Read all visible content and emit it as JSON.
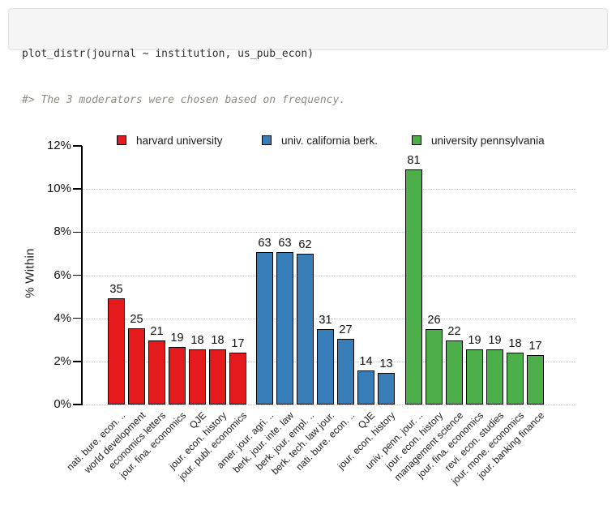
{
  "code_block": {
    "line1": "plot_distr(journal ~ institution, us_pub_econ)",
    "line2": "#> The 3 moderators were chosen based on frequency."
  },
  "chart_data": {
    "type": "bar",
    "title": "",
    "ylabel": "% Within",
    "ylim": [
      0,
      12
    ],
    "ytick_labels": [
      "0%",
      "2%",
      "4%",
      "6%",
      "8%",
      "10%",
      "12%"
    ],
    "grid": "horizontal-dotted",
    "legend_position": "top",
    "series": [
      {
        "name": "harvard university",
        "color": "#e41a1c",
        "categories": [
          "nati. bure. econ. ..",
          "world development",
          "economics letters",
          "jour. fina. economics",
          "QJE",
          "jour. econ. history",
          "jour. publ. economics"
        ],
        "counts": [
          35,
          25,
          21,
          19,
          18,
          18,
          17
        ],
        "pct_within": [
          4.94,
          3.53,
          2.96,
          2.68,
          2.54,
          2.54,
          2.4
        ]
      },
      {
        "name": "univ. california berk.",
        "color": "#377eb8",
        "categories": [
          "amer. jour. agri. ..",
          "berk. jour. inte. law",
          "berk. jour. empl. ..",
          "berk. tech. law jour.",
          "nati. bure. econ. ..",
          "QJE",
          "jour. econ. history"
        ],
        "counts": [
          63,
          63,
          62,
          31,
          27,
          14,
          13
        ],
        "pct_within": [
          7.09,
          7.09,
          6.98,
          3.49,
          3.04,
          1.58,
          1.46
        ]
      },
      {
        "name": "university pennsylvania",
        "color": "#4daf4a",
        "categories": [
          "univ. penn. jour. ..",
          "jour. econ. history",
          "management science",
          "jour. fina. economics",
          "revi. econ. studies",
          "jour. mone. economics",
          "jour. banking finance"
        ],
        "counts": [
          81,
          26,
          22,
          19,
          19,
          18,
          17
        ],
        "pct_within": [
          10.91,
          3.5,
          2.96,
          2.56,
          2.56,
          2.42,
          2.29
        ]
      }
    ]
  }
}
